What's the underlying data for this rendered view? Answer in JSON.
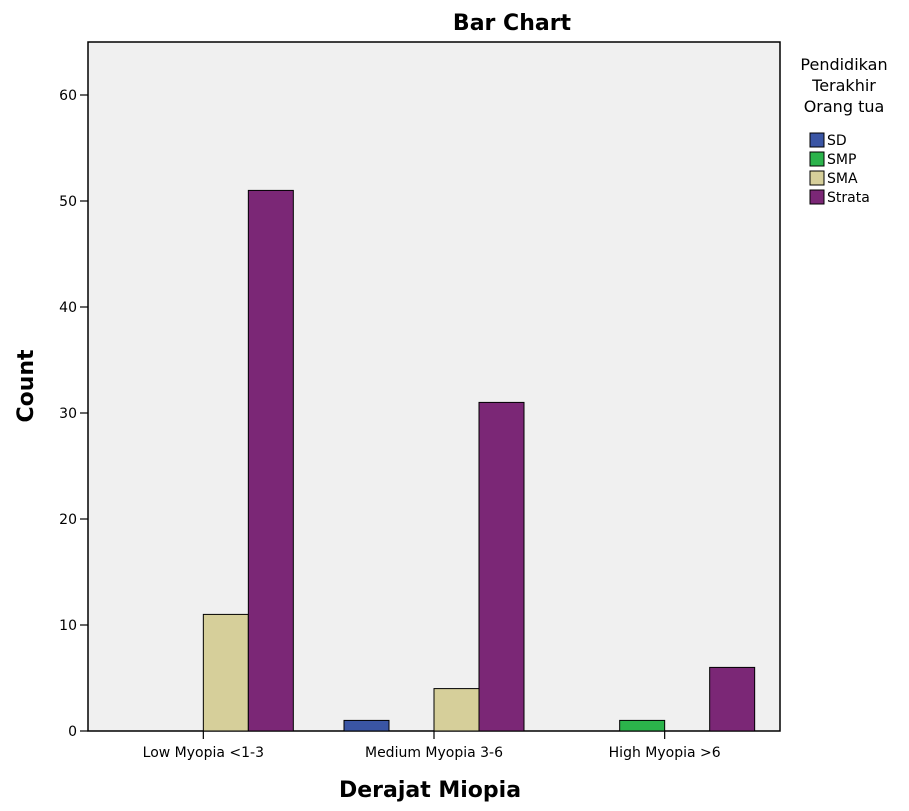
{
  "chart_data": {
    "type": "bar",
    "title": "Bar Chart",
    "xlabel": "Derajat Miopia",
    "ylabel": "Count",
    "categories": [
      "Low Myopia <1-3",
      "Medium Myopia 3-6",
      "High Myopia >6"
    ],
    "series": [
      {
        "name": "SD",
        "color": "#3a55a4",
        "values": [
          0,
          1,
          0
        ]
      },
      {
        "name": "SMP",
        "color": "#2bb34b",
        "values": [
          0,
          0,
          1
        ]
      },
      {
        "name": "SMA",
        "color": "#d6cf9a",
        "values": [
          11,
          4,
          0
        ]
      },
      {
        "name": "Strata",
        "color": "#7b2776",
        "values": [
          51,
          31,
          6
        ]
      }
    ],
    "ylim": [
      0,
      65
    ],
    "yticks": [
      0,
      10,
      20,
      30,
      40,
      50,
      60
    ],
    "grid": false,
    "legend": {
      "title_lines": [
        "Pendidikan",
        "Terakhir",
        "Orang tua"
      ],
      "placement": "right"
    },
    "plot_background": "#f0f0f0"
  }
}
